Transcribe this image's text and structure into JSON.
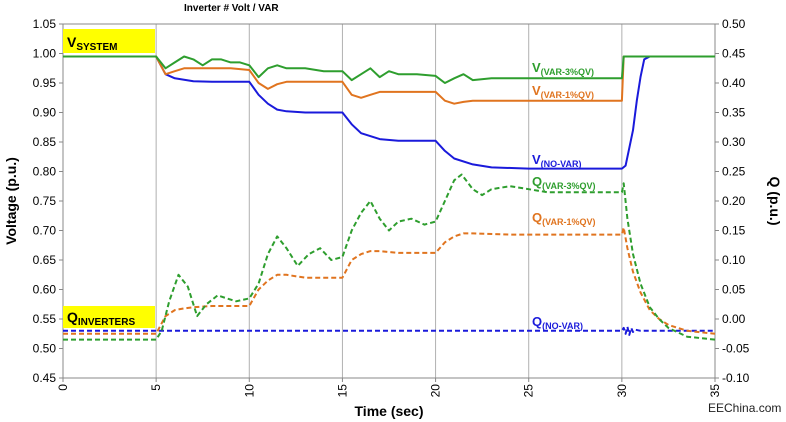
{
  "chart_data": {
    "type": "line",
    "title": "Inverter # Volt / VAR",
    "xlabel": "Time (sec)",
    "ylabel": "Voltage (p.u.)",
    "y2label": "Q (p.u.)",
    "xlim": [
      0,
      35
    ],
    "ylim": [
      0.45,
      1.05
    ],
    "y2lim": [
      -0.1,
      0.5
    ],
    "x_ticks": [
      "0",
      "5",
      "10",
      "15",
      "20",
      "25",
      "30",
      "35"
    ],
    "y_ticks": [
      "0.45",
      "0.50",
      "0.55",
      "0.60",
      "0.65",
      "0.70",
      "0.75",
      "0.80",
      "0.85",
      "0.90",
      "0.95",
      "1.00",
      "1.05"
    ],
    "y2_ticks": [
      "-0.10",
      "-0.05",
      "0.00",
      "0.05",
      "0.10",
      "0.15",
      "0.20",
      "0.25",
      "0.30",
      "0.35",
      "0.40",
      "0.45",
      "0.50"
    ],
    "grid": "vertical",
    "boxes": [
      {
        "main": "V",
        "sub": "SYSTEM"
      },
      {
        "main": "Q",
        "sub": "INVERTERS"
      }
    ],
    "series": [
      {
        "name": "V(VAR-3%QV)",
        "main": "V",
        "sub": "(VAR-3%QV)",
        "color": "#2e9e2e",
        "dash": "solid",
        "axis": "left",
        "points": [
          [
            0,
            0.995
          ],
          [
            5,
            0.995
          ],
          [
            5.5,
            0.975
          ],
          [
            6,
            0.985
          ],
          [
            6.5,
            0.995
          ],
          [
            7,
            0.99
          ],
          [
            7.5,
            0.98
          ],
          [
            8,
            0.99
          ],
          [
            8.5,
            0.99
          ],
          [
            9,
            0.985
          ],
          [
            9.5,
            0.985
          ],
          [
            10,
            0.98
          ],
          [
            10.5,
            0.96
          ],
          [
            11,
            0.975
          ],
          [
            11.5,
            0.98
          ],
          [
            12,
            0.975
          ],
          [
            13,
            0.975
          ],
          [
            14,
            0.97
          ],
          [
            15,
            0.97
          ],
          [
            15.5,
            0.955
          ],
          [
            16,
            0.965
          ],
          [
            16.5,
            0.975
          ],
          [
            17,
            0.96
          ],
          [
            17.5,
            0.97
          ],
          [
            18,
            0.965
          ],
          [
            19,
            0.965
          ],
          [
            20,
            0.962
          ],
          [
            20.5,
            0.95
          ],
          [
            21,
            0.958
          ],
          [
            21.5,
            0.965
          ],
          [
            22,
            0.955
          ],
          [
            23,
            0.958
          ],
          [
            24,
            0.958
          ],
          [
            26,
            0.958
          ],
          [
            28,
            0.958
          ],
          [
            30,
            0.958
          ],
          [
            30.1,
            0.995
          ],
          [
            35,
            0.995
          ]
        ]
      },
      {
        "name": "V(VAR-1%QV)",
        "main": "V",
        "sub": "(VAR-1%QV)",
        "color": "#e0741f",
        "dash": "solid",
        "axis": "left",
        "points": [
          [
            0,
            0.995
          ],
          [
            5,
            0.995
          ],
          [
            5.5,
            0.965
          ],
          [
            6,
            0.97
          ],
          [
            6.5,
            0.975
          ],
          [
            7,
            0.975
          ],
          [
            8,
            0.975
          ],
          [
            9,
            0.975
          ],
          [
            10,
            0.972
          ],
          [
            10.5,
            0.95
          ],
          [
            11,
            0.94
          ],
          [
            11.5,
            0.948
          ],
          [
            12,
            0.952
          ],
          [
            13,
            0.952
          ],
          [
            14,
            0.952
          ],
          [
            15,
            0.952
          ],
          [
            15.5,
            0.93
          ],
          [
            16,
            0.925
          ],
          [
            16.5,
            0.93
          ],
          [
            17,
            0.935
          ],
          [
            18,
            0.935
          ],
          [
            19,
            0.935
          ],
          [
            20,
            0.935
          ],
          [
            20.5,
            0.92
          ],
          [
            21,
            0.915
          ],
          [
            21.5,
            0.918
          ],
          [
            22,
            0.92
          ],
          [
            24,
            0.92
          ],
          [
            26,
            0.92
          ],
          [
            28,
            0.92
          ],
          [
            30,
            0.92
          ],
          [
            30.1,
            0.995
          ],
          [
            35,
            0.995
          ]
        ]
      },
      {
        "name": "V(NO-VAR)",
        "main": "V",
        "sub": "(NO-VAR)",
        "color": "#1a1adb",
        "dash": "solid",
        "axis": "left",
        "points": [
          [
            0,
            0.995
          ],
          [
            5,
            0.995
          ],
          [
            5.5,
            0.965
          ],
          [
            6,
            0.958
          ],
          [
            7,
            0.953
          ],
          [
            8,
            0.952
          ],
          [
            9,
            0.952
          ],
          [
            10,
            0.952
          ],
          [
            10.5,
            0.93
          ],
          [
            11,
            0.915
          ],
          [
            11.5,
            0.905
          ],
          [
            12,
            0.902
          ],
          [
            13,
            0.9
          ],
          [
            15,
            0.9
          ],
          [
            15.5,
            0.88
          ],
          [
            16,
            0.865
          ],
          [
            17,
            0.855
          ],
          [
            18,
            0.852
          ],
          [
            20,
            0.852
          ],
          [
            20.5,
            0.835
          ],
          [
            21,
            0.822
          ],
          [
            22,
            0.812
          ],
          [
            23,
            0.807
          ],
          [
            25,
            0.805
          ],
          [
            30,
            0.805
          ],
          [
            30.2,
            0.81
          ],
          [
            30.4,
            0.84
          ],
          [
            30.6,
            0.87
          ],
          [
            30.8,
            0.92
          ],
          [
            31,
            0.96
          ],
          [
            31.2,
            0.99
          ],
          [
            31.5,
            0.995
          ],
          [
            35,
            0.995
          ]
        ]
      },
      {
        "name": "Q(VAR-3%QV)",
        "main": "Q",
        "sub": "(VAR-3%QV)",
        "color": "#2e9e2e",
        "dash": "dashed",
        "axis": "right",
        "points": [
          [
            0,
            -0.035
          ],
          [
            5,
            -0.035
          ],
          [
            5.3,
            -0.02
          ],
          [
            5.7,
            0.03
          ],
          [
            6.2,
            0.075
          ],
          [
            6.7,
            0.055
          ],
          [
            7.2,
            0.005
          ],
          [
            7.7,
            0.025
          ],
          [
            8.3,
            0.04
          ],
          [
            8.8,
            0.035
          ],
          [
            9.3,
            0.03
          ],
          [
            10,
            0.035
          ],
          [
            10.5,
            0.06
          ],
          [
            11,
            0.11
          ],
          [
            11.5,
            0.14
          ],
          [
            12,
            0.12
          ],
          [
            12.6,
            0.09
          ],
          [
            13.2,
            0.11
          ],
          [
            13.8,
            0.12
          ],
          [
            14.4,
            0.1
          ],
          [
            15,
            0.105
          ],
          [
            15.5,
            0.15
          ],
          [
            16,
            0.18
          ],
          [
            16.5,
            0.2
          ],
          [
            17,
            0.17
          ],
          [
            17.5,
            0.15
          ],
          [
            18,
            0.165
          ],
          [
            18.7,
            0.17
          ],
          [
            19.4,
            0.16
          ],
          [
            20,
            0.165
          ],
          [
            20.5,
            0.2
          ],
          [
            21,
            0.235
          ],
          [
            21.4,
            0.245
          ],
          [
            22,
            0.22
          ],
          [
            22.5,
            0.21
          ],
          [
            23,
            0.22
          ],
          [
            24,
            0.225
          ],
          [
            25,
            0.22
          ],
          [
            26,
            0.215
          ],
          [
            28,
            0.215
          ],
          [
            30,
            0.215
          ],
          [
            30.1,
            0.23
          ],
          [
            30.3,
            0.17
          ],
          [
            30.6,
            0.11
          ],
          [
            31,
            0.06
          ],
          [
            31.5,
            0.02
          ],
          [
            32,
            0
          ],
          [
            32.5,
            -0.015
          ],
          [
            33.5,
            -0.03
          ],
          [
            35,
            -0.035
          ]
        ]
      },
      {
        "name": "Q(VAR-1%QV)",
        "main": "Q",
        "sub": "(VAR-1%QV)",
        "color": "#e0741f",
        "dash": "dashed",
        "axis": "right",
        "points": [
          [
            0,
            -0.025
          ],
          [
            5,
            -0.025
          ],
          [
            5.5,
            0.005
          ],
          [
            6,
            0.015
          ],
          [
            6.5,
            0.018
          ],
          [
            7,
            0.02
          ],
          [
            8,
            0.022
          ],
          [
            9,
            0.022
          ],
          [
            10,
            0.022
          ],
          [
            10.5,
            0.05
          ],
          [
            11,
            0.065
          ],
          [
            11.5,
            0.075
          ],
          [
            12,
            0.075
          ],
          [
            13,
            0.07
          ],
          [
            14,
            0.07
          ],
          [
            15,
            0.07
          ],
          [
            15.5,
            0.1
          ],
          [
            16,
            0.11
          ],
          [
            16.5,
            0.115
          ],
          [
            17,
            0.115
          ],
          [
            18,
            0.112
          ],
          [
            19,
            0.112
          ],
          [
            20,
            0.112
          ],
          [
            20.5,
            0.13
          ],
          [
            21,
            0.14
          ],
          [
            21.5,
            0.145
          ],
          [
            22,
            0.145
          ],
          [
            24,
            0.143
          ],
          [
            26,
            0.143
          ],
          [
            28,
            0.143
          ],
          [
            30,
            0.143
          ],
          [
            30.1,
            0.155
          ],
          [
            30.3,
            0.12
          ],
          [
            30.6,
            0.08
          ],
          [
            31,
            0.045
          ],
          [
            31.5,
            0.015
          ],
          [
            32,
            0
          ],
          [
            32.5,
            -0.01
          ],
          [
            33.5,
            -0.02
          ],
          [
            35,
            -0.025
          ]
        ]
      },
      {
        "name": "Q(NO-VAR)",
        "main": "Q",
        "sub": "(NO-VAR)",
        "color": "#1a1adb",
        "dash": "dashed",
        "axis": "right",
        "points": [
          [
            0,
            -0.02
          ],
          [
            5,
            -0.02
          ],
          [
            10,
            -0.02
          ],
          [
            15,
            -0.02
          ],
          [
            20,
            -0.02
          ],
          [
            25,
            -0.02
          ],
          [
            30,
            -0.02
          ],
          [
            30.1,
            -0.015
          ],
          [
            30.2,
            -0.025
          ],
          [
            30.3,
            -0.013
          ],
          [
            30.4,
            -0.027
          ],
          [
            30.5,
            -0.015
          ],
          [
            30.6,
            -0.022
          ],
          [
            30.7,
            -0.018
          ],
          [
            31,
            -0.02
          ],
          [
            35,
            -0.02
          ]
        ]
      }
    ]
  },
  "watermark": "EEChina.com"
}
